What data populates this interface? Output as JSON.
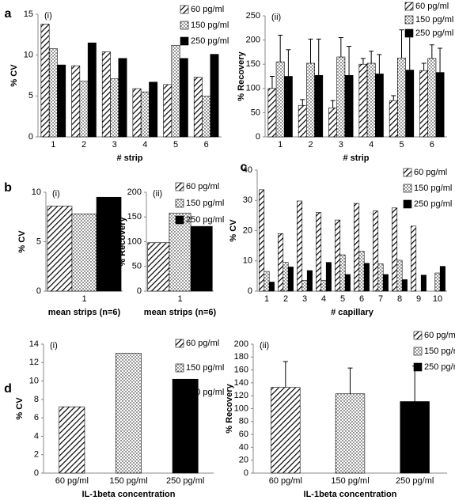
{
  "chart_data": [
    {
      "type": "bar",
      "panel": "a",
      "label": "(i)",
      "y_label": "% CV",
      "x_label": "# strip",
      "categories": [
        "1",
        "2",
        "3",
        "4",
        "5",
        "6"
      ],
      "ylim": [
        0,
        15
      ],
      "yticks": [
        0,
        5,
        10,
        15
      ],
      "series": [
        {
          "name": "60 pg/ml",
          "pattern": "hatch",
          "color": "#000000",
          "values": [
            13.8,
            8.7,
            10.4,
            5.9,
            6.4,
            7.3
          ]
        },
        {
          "name": "150 pg/ml",
          "pattern": "dots",
          "color": "#000000",
          "values": [
            10.8,
            6.8,
            7.1,
            5.5,
            11.2,
            5.0
          ]
        },
        {
          "name": "250 pg/ml",
          "pattern": "solid",
          "color": "#000000",
          "values": [
            8.8,
            11.5,
            9.6,
            6.7,
            9.6,
            10.1
          ]
        }
      ]
    },
    {
      "type": "bar",
      "label": "(ii)",
      "y_label": "% Recovery",
      "x_label": "# strip",
      "categories": [
        "1",
        "2",
        "3",
        "4",
        "5",
        "6"
      ],
      "ylim": [
        0,
        250
      ],
      "yticks": [
        0,
        50,
        100,
        150,
        200,
        250
      ],
      "series": [
        {
          "name": "60 pg/ml",
          "pattern": "hatch",
          "color": "#000000",
          "values": [
            100,
            65,
            60,
            150,
            75,
            137
          ],
          "errors": [
            25,
            12,
            15,
            12,
            10,
            15
          ]
        },
        {
          "name": "150 pg/ml",
          "pattern": "dots",
          "color": "#000000",
          "values": [
            155,
            152,
            165,
            152,
            163,
            162
          ],
          "errors": [
            55,
            50,
            40,
            25,
            58,
            28
          ]
        },
        {
          "name": "250 pg/ml",
          "pattern": "solid",
          "color": "#000000",
          "values": [
            125,
            127,
            127,
            130,
            138,
            133
          ],
          "errors": [
            55,
            75,
            60,
            40,
            70,
            50
          ]
        }
      ]
    },
    {
      "type": "bar",
      "panel": "b",
      "label": "(i)",
      "y_label": "% CV",
      "x_label": "mean strips (n=6)",
      "categories": [
        "1"
      ],
      "ylim": [
        0,
        10
      ],
      "yticks": [
        0,
        5,
        10
      ],
      "series": [
        {
          "pattern": "hatch",
          "color": "#000000",
          "values": [
            8.6
          ]
        },
        {
          "pattern": "dots",
          "color": "#000000",
          "values": [
            7.8
          ]
        },
        {
          "pattern": "solid",
          "color": "#000000",
          "values": [
            9.5
          ]
        }
      ]
    },
    {
      "type": "bar",
      "label": "(ii)",
      "y_label": "% Recovery",
      "x_label": "mean strips (n=6)",
      "categories": [
        "1"
      ],
      "ylim": [
        0,
        200
      ],
      "yticks": [
        0,
        50,
        100,
        150,
        200
      ],
      "series": [
        {
          "name": "60 pg/ml",
          "pattern": "hatch",
          "color": "#000000",
          "values": [
            98
          ]
        },
        {
          "name": "150 pg/ml",
          "pattern": "dots",
          "color": "#000000",
          "values": [
            158
          ]
        },
        {
          "name": "250 pg/ml",
          "pattern": "solid",
          "color": "#000000",
          "values": [
            131
          ]
        }
      ]
    },
    {
      "type": "bar",
      "panel": "c",
      "y_label": "% CV",
      "x_label": "# capillary",
      "categories": [
        "1",
        "2",
        "3",
        "4",
        "5",
        "6",
        "7",
        "8",
        "9",
        "10"
      ],
      "ylim": [
        0,
        40
      ],
      "yticks": [
        0,
        10,
        20,
        30,
        40
      ],
      "series": [
        {
          "name": "60 pg/ml",
          "pattern": "hatch",
          "color": "#000000",
          "values": [
            33.5,
            19,
            29.8,
            26,
            23.5,
            29,
            26.5,
            27.5,
            21.5,
            null
          ]
        },
        {
          "name": "150 pg/ml",
          "pattern": "dots",
          "color": "#000000",
          "values": [
            6.5,
            9.5,
            3.5,
            3.5,
            12,
            13.2,
            9,
            10.2,
            null,
            6
          ]
        },
        {
          "name": "250 pg/ml",
          "pattern": "solid",
          "color": "#000000",
          "values": [
            3,
            8,
            6.8,
            9.5,
            5.5,
            9.2,
            5.5,
            3.8,
            5.3,
            8.2
          ]
        }
      ]
    },
    {
      "type": "single",
      "panel": "d",
      "label": "(i)",
      "y_label": "% CV",
      "x_label": "IL-1beta concentration",
      "categories": [
        "60 pg/ml",
        "150 pg/ml",
        "250 pg/ml"
      ],
      "ylim": [
        0,
        14
      ],
      "yticks": [
        0,
        2,
        4,
        6,
        8,
        10,
        12,
        14
      ],
      "patterns": [
        "hatch",
        "dots",
        "solid"
      ],
      "color": "#000000",
      "values": [
        7.2,
        13,
        10.2
      ]
    },
    {
      "type": "single",
      "label": "(ii)",
      "y_label": "% Recovery",
      "x_label": "IL-1beta concentration",
      "categories": [
        "60 pg/ml",
        "150 pg/ml",
        "250 pg/ml"
      ],
      "ylim": [
        0,
        200
      ],
      "yticks": [
        0,
        20,
        40,
        60,
        80,
        100,
        120,
        140,
        160,
        180,
        200
      ],
      "patterns": [
        "hatch",
        "dots",
        "solid"
      ],
      "color": "#000000",
      "values": [
        133,
        123,
        111
      ],
      "errors": [
        40,
        40,
        55
      ]
    }
  ]
}
